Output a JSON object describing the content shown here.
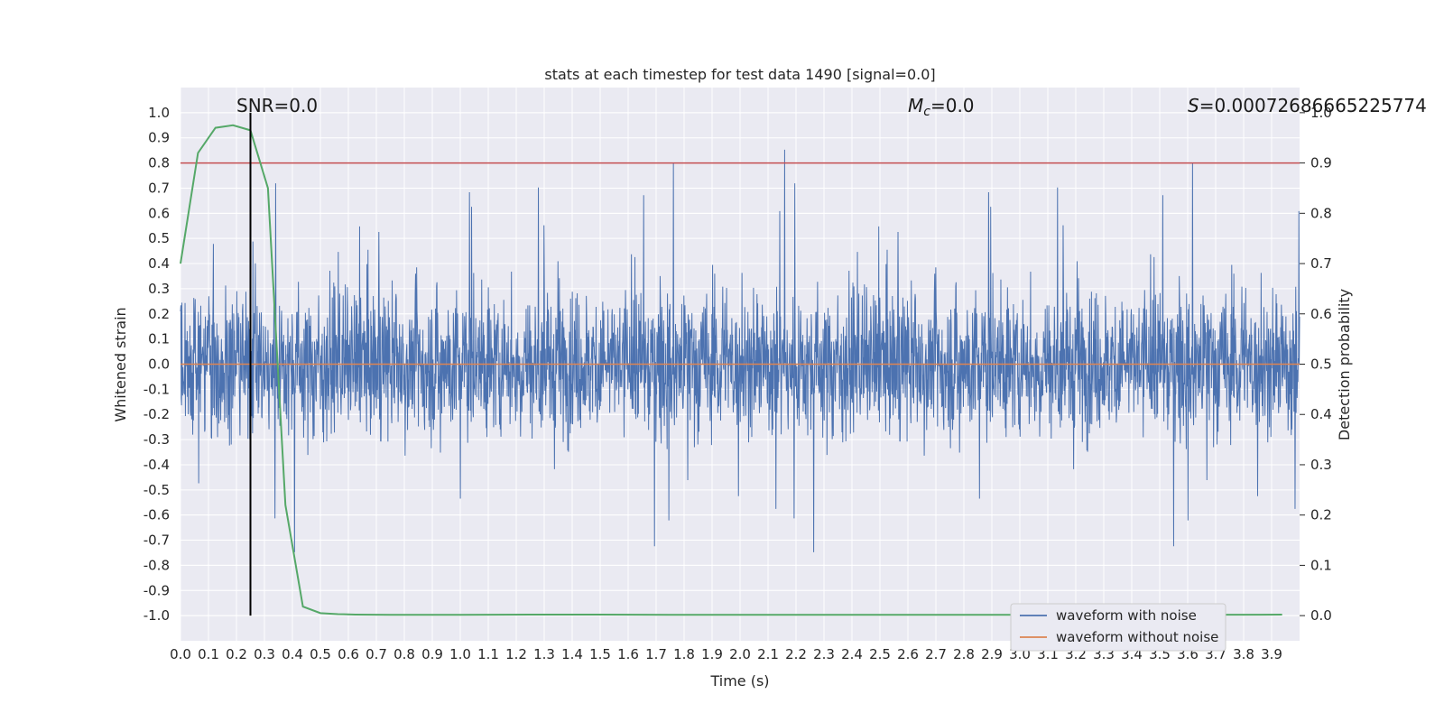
{
  "chart_data": {
    "type": "line",
    "title": "stats at each timestep for test data 1490 [signal=0.0]",
    "xlabel": "Time (s)",
    "ylabel": "Whitened strain",
    "ylabel_right": "Detection probability",
    "xlim": [
      0.0,
      4.0
    ],
    "ylim": [
      -1.1,
      1.1
    ],
    "ylim_right": [
      -0.05,
      1.05
    ],
    "x_ticks": [
      "0.0",
      "0.1",
      "0.2",
      "0.3",
      "0.4",
      "0.5",
      "0.6",
      "0.7",
      "0.8",
      "0.9",
      "1.0",
      "1.1",
      "1.2",
      "1.3",
      "1.4",
      "1.5",
      "1.6",
      "1.7",
      "1.8",
      "1.9",
      "2.0",
      "2.1",
      "2.2",
      "2.3",
      "2.4",
      "2.5",
      "2.6",
      "2.7",
      "2.8",
      "2.9",
      "3.0",
      "3.1",
      "3.2",
      "3.3",
      "3.4",
      "3.5",
      "3.6",
      "3.7",
      "3.8",
      "3.9"
    ],
    "y_ticks": [
      "1.0",
      "0.9",
      "0.8",
      "0.7",
      "0.6",
      "0.5",
      "0.4",
      "0.3",
      "0.2",
      "0.1",
      "0.0",
      "-0.1",
      "-0.2",
      "-0.3",
      "-0.4",
      "-0.5",
      "-0.6",
      "-0.7",
      "-0.8",
      "-0.9",
      "-1.0"
    ],
    "y_ticks_right": [
      "1.0",
      "0.9",
      "0.8",
      "0.7",
      "0.6",
      "0.5",
      "0.4",
      "0.3",
      "0.2",
      "0.1",
      "0.0"
    ],
    "annotations": {
      "snr": "SNR=0.0",
      "mc_symbol": "M",
      "mc_sub": "c",
      "mc_value": "=0.0",
      "s_symbol": "S",
      "s_value": "=0.00072686665225774"
    },
    "series": [
      {
        "name": "waveform with noise",
        "color": "#4c72b0",
        "axis": "left",
        "note": "dense noise, envelope approx ±0.4 with spikes up to ±1.0"
      },
      {
        "name": "waveform without noise",
        "color": "#dd8452",
        "axis": "left",
        "x": [
          0.0,
          4.0
        ],
        "values": [
          0.0,
          0.0
        ]
      },
      {
        "name": "detection probability",
        "color": "#55a868",
        "axis": "right",
        "x": [
          0.0,
          0.0625,
          0.125,
          0.1875,
          0.25,
          0.3125,
          0.375,
          0.4375,
          0.5,
          0.5625,
          0.625,
          0.75,
          1.0,
          1.25,
          1.5,
          1.75,
          2.0,
          2.5,
          3.0,
          3.5,
          3.9375
        ],
        "values": [
          0.7,
          0.92,
          0.97,
          0.975,
          0.965,
          0.85,
          0.22,
          0.018,
          0.005,
          0.003,
          0.002,
          0.0015,
          0.0015,
          0.002,
          0.002,
          0.0015,
          0.0015,
          0.0015,
          0.0015,
          0.0015,
          0.002
        ]
      }
    ],
    "threshold": {
      "value": 0.9,
      "axis": "right",
      "color": "#c44e52"
    },
    "marker_line": {
      "x": 0.25,
      "color": "#000000"
    },
    "legend": {
      "placement": "lower-right",
      "entries": [
        "waveform with noise",
        "waveform without noise"
      ]
    },
    "grid": true,
    "style": {
      "background": "#eaeaf2",
      "grid": "#ffffff"
    }
  }
}
